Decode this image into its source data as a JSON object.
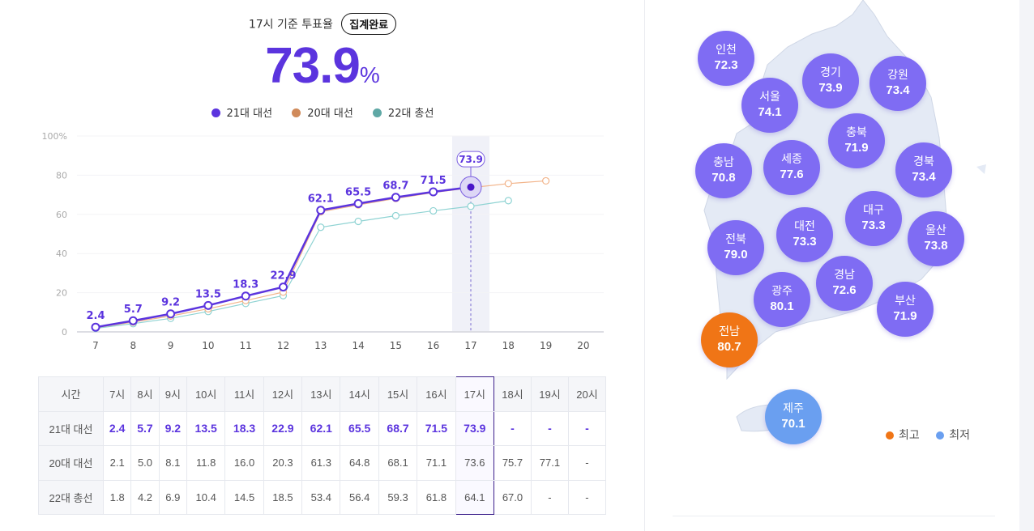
{
  "header": {
    "label": "17시 기준 투표율",
    "badge": "집계완료",
    "value": "73.9",
    "unit": "%"
  },
  "legend": [
    {
      "name": "21대 대선",
      "color": "#5b34de"
    },
    {
      "name": "20대 대선",
      "color": "#d08a5a"
    },
    {
      "name": "22대 총선",
      "color": "#5fa8a5"
    }
  ],
  "chart_data": {
    "type": "line",
    "x": [
      7,
      8,
      9,
      10,
      11,
      12,
      13,
      14,
      15,
      16,
      17,
      18,
      19,
      20
    ],
    "ylim": [
      0,
      100
    ],
    "yticks": [
      "0",
      "20",
      "40",
      "60",
      "80",
      "100%"
    ],
    "grid": true,
    "highlight_x": 17,
    "highlight_label": "73.9",
    "series": [
      {
        "name": "21대 대선",
        "color": "#5b34de",
        "values": [
          2.4,
          5.7,
          9.2,
          13.5,
          18.3,
          22.9,
          62.1,
          65.5,
          68.7,
          71.5,
          73.9,
          null,
          null,
          null
        ]
      },
      {
        "name": "20대 대선",
        "color": "#f2b48a",
        "values": [
          2.1,
          5.0,
          8.1,
          11.8,
          16.0,
          20.3,
          61.3,
          64.8,
          68.1,
          71.1,
          73.6,
          75.7,
          77.1,
          null
        ]
      },
      {
        "name": "22대 총선",
        "color": "#8fd3d3",
        "values": [
          1.8,
          4.2,
          6.9,
          10.4,
          14.5,
          18.5,
          53.4,
          56.4,
          59.3,
          61.8,
          64.1,
          67.0,
          null,
          null
        ]
      }
    ]
  },
  "table": {
    "corner": "시간",
    "headers": [
      "7시",
      "8시",
      "9시",
      "10시",
      "11시",
      "12시",
      "13시",
      "14시",
      "15시",
      "16시",
      "17시",
      "18시",
      "19시",
      "20시"
    ],
    "rows": [
      {
        "label": "21대 대선",
        "values": [
          "2.4",
          "5.7",
          "9.2",
          "13.5",
          "18.3",
          "22.9",
          "62.1",
          "65.5",
          "68.7",
          "71.5",
          "73.9",
          "-",
          "-",
          "-"
        ]
      },
      {
        "label": "20대 대선",
        "values": [
          "2.1",
          "5.0",
          "8.1",
          "11.8",
          "16.0",
          "20.3",
          "61.3",
          "64.8",
          "68.1",
          "71.1",
          "73.6",
          "75.7",
          "77.1",
          "-"
        ]
      },
      {
        "label": "22대 총선",
        "values": [
          "1.8",
          "4.2",
          "6.9",
          "10.4",
          "14.5",
          "18.5",
          "53.4",
          "56.4",
          "59.3",
          "61.8",
          "64.1",
          "67.0",
          "-",
          "-"
        ]
      }
    ]
  },
  "map": {
    "colors": {
      "normal": "#7f6cf3",
      "highest": "#f07516",
      "lowest": "#6a9ff0",
      "land": "#e4eaf5"
    },
    "regions": [
      {
        "name": "인천",
        "value": "72.3"
      },
      {
        "name": "서울",
        "value": "74.1"
      },
      {
        "name": "경기",
        "value": "73.9"
      },
      {
        "name": "강원",
        "value": "73.4"
      },
      {
        "name": "충북",
        "value": "71.9"
      },
      {
        "name": "세종",
        "value": "77.6"
      },
      {
        "name": "충남",
        "value": "70.8"
      },
      {
        "name": "경북",
        "value": "73.4"
      },
      {
        "name": "대구",
        "value": "73.3"
      },
      {
        "name": "대전",
        "value": "73.3"
      },
      {
        "name": "전북",
        "value": "79.0"
      },
      {
        "name": "울산",
        "value": "73.8"
      },
      {
        "name": "경남",
        "value": "72.6"
      },
      {
        "name": "광주",
        "value": "80.1"
      },
      {
        "name": "부산",
        "value": "71.9"
      },
      {
        "name": "전남",
        "value": "80.7",
        "mark": "highest"
      },
      {
        "name": "제주",
        "value": "70.1",
        "mark": "lowest"
      }
    ],
    "legend": {
      "highest": "최고",
      "lowest": "최저"
    }
  }
}
